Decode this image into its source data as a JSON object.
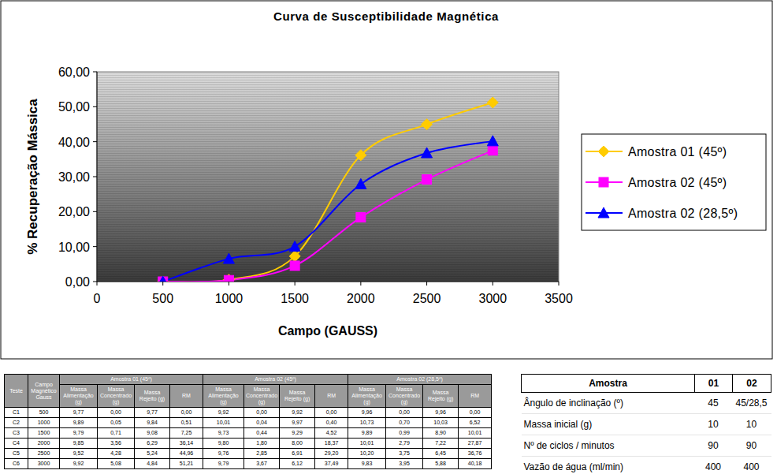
{
  "chart_data": {
    "type": "line",
    "title": "Curva de Susceptibilidade Magnética",
    "x_label": "Campo (GAUSS)",
    "y_label": "% Recuperação Mássica",
    "x": [
      500,
      1000,
      1500,
      2000,
      2500,
      3000
    ],
    "series": [
      {
        "name": "Amostra 01 (45º)",
        "color": "#ffcc00",
        "marker": "diamond",
        "values": [
          0.0,
          0.51,
          7.25,
          36.14,
          44.96,
          51.21
        ]
      },
      {
        "name": "Amostra 02 (45º)",
        "color": "#ff00ff",
        "marker": "square",
        "values": [
          0.0,
          0.4,
          4.52,
          18.37,
          29.2,
          37.49
        ]
      },
      {
        "name": "Amostra 02 (28,5º)",
        "color": "#0000ff",
        "marker": "triangle",
        "values": [
          0.0,
          6.52,
          10.01,
          27.87,
          36.76,
          40.18
        ]
      }
    ],
    "xlim": [
      0,
      3500
    ],
    "xticks": [
      0,
      500,
      1000,
      1500,
      2000,
      2500,
      3000,
      3500
    ],
    "ylim": [
      0,
      60
    ],
    "yticks": [
      {
        "value": 0,
        "label": "0,00"
      },
      {
        "value": 10,
        "label": "10,00"
      },
      {
        "value": 20,
        "label": "20,00"
      },
      {
        "value": 30,
        "label": "30,00"
      },
      {
        "value": 40,
        "label": "40,00"
      },
      {
        "value": 50,
        "label": "50,00"
      },
      {
        "value": 60,
        "label": "60,00"
      }
    ],
    "grid": false,
    "legend": "right"
  },
  "table": {
    "header": [
      "Teste",
      "Campo Magnético Gauss"
    ],
    "groups": [
      "Amostra 01 (45º)",
      "Amostra 02 (45º)",
      "Amostra 02 (28,5º)"
    ],
    "subheaders": [
      [
        "Massa Alimentação (g)",
        "Massa Concentrado (g)",
        "Massa Rejeito (g)",
        "RM"
      ],
      [
        "Massa Alimentação (g)",
        "Massa Concentrado (g)",
        "Massa Rejeito (g)",
        "RM"
      ],
      [
        "Massa Alimentação (g)",
        "Massa Concentrado (g)",
        "Massa Rejeito (g)",
        "RM"
      ]
    ],
    "rows": [
      [
        "C1",
        "500",
        "9,77",
        "0,00",
        "9,77",
        "0,00",
        "9,92",
        "0,00",
        "9,92",
        "0,00",
        "9,96",
        "0,00",
        "9,96",
        "0,00"
      ],
      [
        "C2",
        "1000",
        "9,89",
        "0,05",
        "9,84",
        "0,51",
        "10,01",
        "0,04",
        "9,97",
        "0,40",
        "10,73",
        "0,70",
        "10,03",
        "6,52"
      ],
      [
        "C3",
        "1500",
        "9,79",
        "0,71",
        "9,08",
        "7,25",
        "9,73",
        "0,44",
        "9,29",
        "4,52",
        "9,89",
        "0,99",
        "8,90",
        "10,01"
      ],
      [
        "C4",
        "2000",
        "9,85",
        "3,56",
        "6,29",
        "36,14",
        "9,80",
        "1,80",
        "8,00",
        "18,37",
        "10,01",
        "2,79",
        "7,22",
        "27,87"
      ],
      [
        "C5",
        "2500",
        "9,52",
        "4,28",
        "5,24",
        "44,96",
        "9,76",
        "2,85",
        "6,91",
        "29,20",
        "10,20",
        "3,75",
        "6,45",
        "36,76"
      ],
      [
        "C6",
        "3000",
        "9,92",
        "5,08",
        "4,84",
        "51,21",
        "9,79",
        "3,67",
        "6,12",
        "37,49",
        "9,83",
        "3,95",
        "5,88",
        "40,18"
      ]
    ]
  },
  "params_table": {
    "header": [
      "Amostra",
      "01",
      "02"
    ],
    "rows": [
      [
        "Ângulo de inclinação (º)",
        "45",
        "45/28,5"
      ],
      [
        "Massa inicial (g)",
        "10",
        "10"
      ],
      [
        "Nº de ciclos / minutos",
        "90",
        "90"
      ],
      [
        "Vazão de água (ml/min)",
        "400",
        "400"
      ]
    ]
  }
}
